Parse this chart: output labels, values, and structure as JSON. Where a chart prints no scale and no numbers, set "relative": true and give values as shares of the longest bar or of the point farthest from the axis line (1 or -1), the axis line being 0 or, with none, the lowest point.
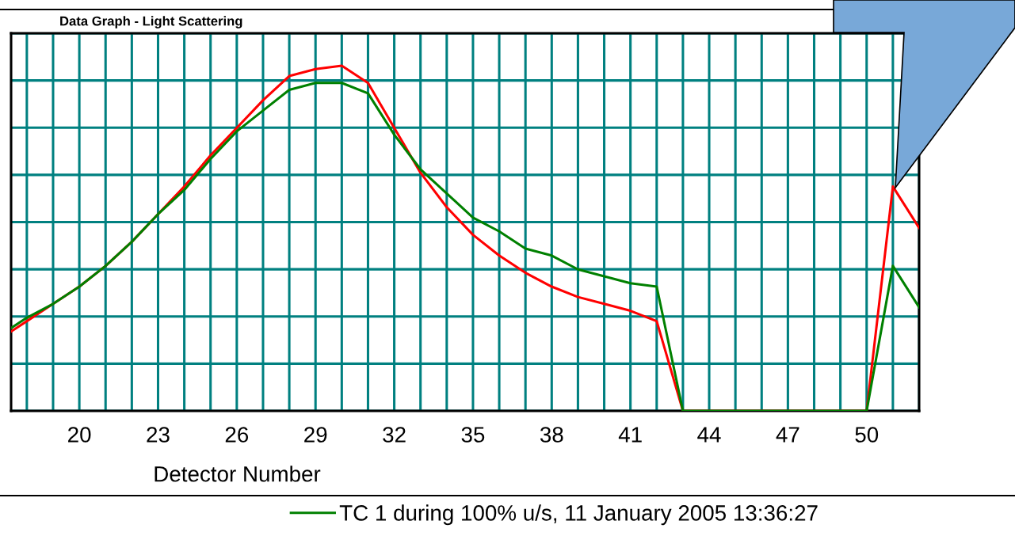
{
  "chart_data": {
    "type": "line",
    "title": "Data Graph - Light Scattering",
    "xlabel": "Detector Number",
    "relative": true,
    "x": [
      17.4,
      18,
      19,
      20,
      21,
      22,
      23,
      24,
      25,
      26,
      27,
      28,
      29,
      30,
      31,
      32,
      33,
      34,
      35,
      36,
      37,
      38,
      39,
      40,
      41,
      42,
      43,
      44,
      45,
      46,
      47,
      48,
      49,
      50,
      51,
      52
    ],
    "series": [
      {
        "color": "#ff0000",
        "values": [
          0.23,
          0.26,
          0.31,
          0.36,
          0.42,
          0.49,
          0.57,
          0.65,
          0.74,
          0.82,
          0.9,
          0.97,
          0.99,
          1,
          0.95,
          0.82,
          0.69,
          0.59,
          0.51,
          0.45,
          0.4,
          0.36,
          0.33,
          0.31,
          0.29,
          0.26,
          0,
          0,
          0,
          0,
          0,
          0,
          0,
          0,
          0.65,
          0.53
        ]
      },
      {
        "name": "TC 1 during 100% u/s, 11 January 2005 13:36:27",
        "color": "#008000",
        "values": [
          0.24,
          0.27,
          0.31,
          0.36,
          0.42,
          0.49,
          0.57,
          0.64,
          0.73,
          0.81,
          0.87,
          0.93,
          0.95,
          0.95,
          0.92,
          0.8,
          0.7,
          0.63,
          0.56,
          0.52,
          0.47,
          0.45,
          0.41,
          0.39,
          0.37,
          0.36,
          0,
          0,
          0,
          0,
          0,
          0,
          0,
          0,
          0.42,
          0.3
        ]
      }
    ],
    "xlim": [
      17.4,
      52
    ],
    "xticks": [
      {
        "value": 18,
        "label": null
      },
      {
        "value": 19,
        "label": null
      },
      20,
      {
        "value": 21,
        "label": null
      },
      {
        "value": 22,
        "label": null
      },
      23,
      {
        "value": 24,
        "label": null
      },
      {
        "value": 25,
        "label": null
      },
      26,
      {
        "value": 27,
        "label": null
      },
      {
        "value": 28,
        "label": null
      },
      29,
      {
        "value": 30,
        "label": null
      },
      {
        "value": 31,
        "label": null
      },
      32,
      {
        "value": 33,
        "label": null
      },
      {
        "value": 34,
        "label": null
      },
      35,
      {
        "value": 36,
        "label": null
      },
      {
        "value": 37,
        "label": null
      },
      38,
      {
        "value": 39,
        "label": null
      },
      {
        "value": 40,
        "label": null
      },
      41,
      {
        "value": 42,
        "label": null
      },
      {
        "value": 43,
        "label": null
      },
      44,
      {
        "value": 45,
        "label": null
      },
      {
        "value": 46,
        "label": null
      },
      47,
      {
        "value": 48,
        "label": null
      },
      {
        "value": 49,
        "label": null
      },
      50,
      {
        "value": 51,
        "label": null
      },
      {
        "value": 52,
        "label": null
      }
    ],
    "grid": true,
    "legend": "bottom",
    "marker": "none",
    "line_style": "solid"
  }
}
